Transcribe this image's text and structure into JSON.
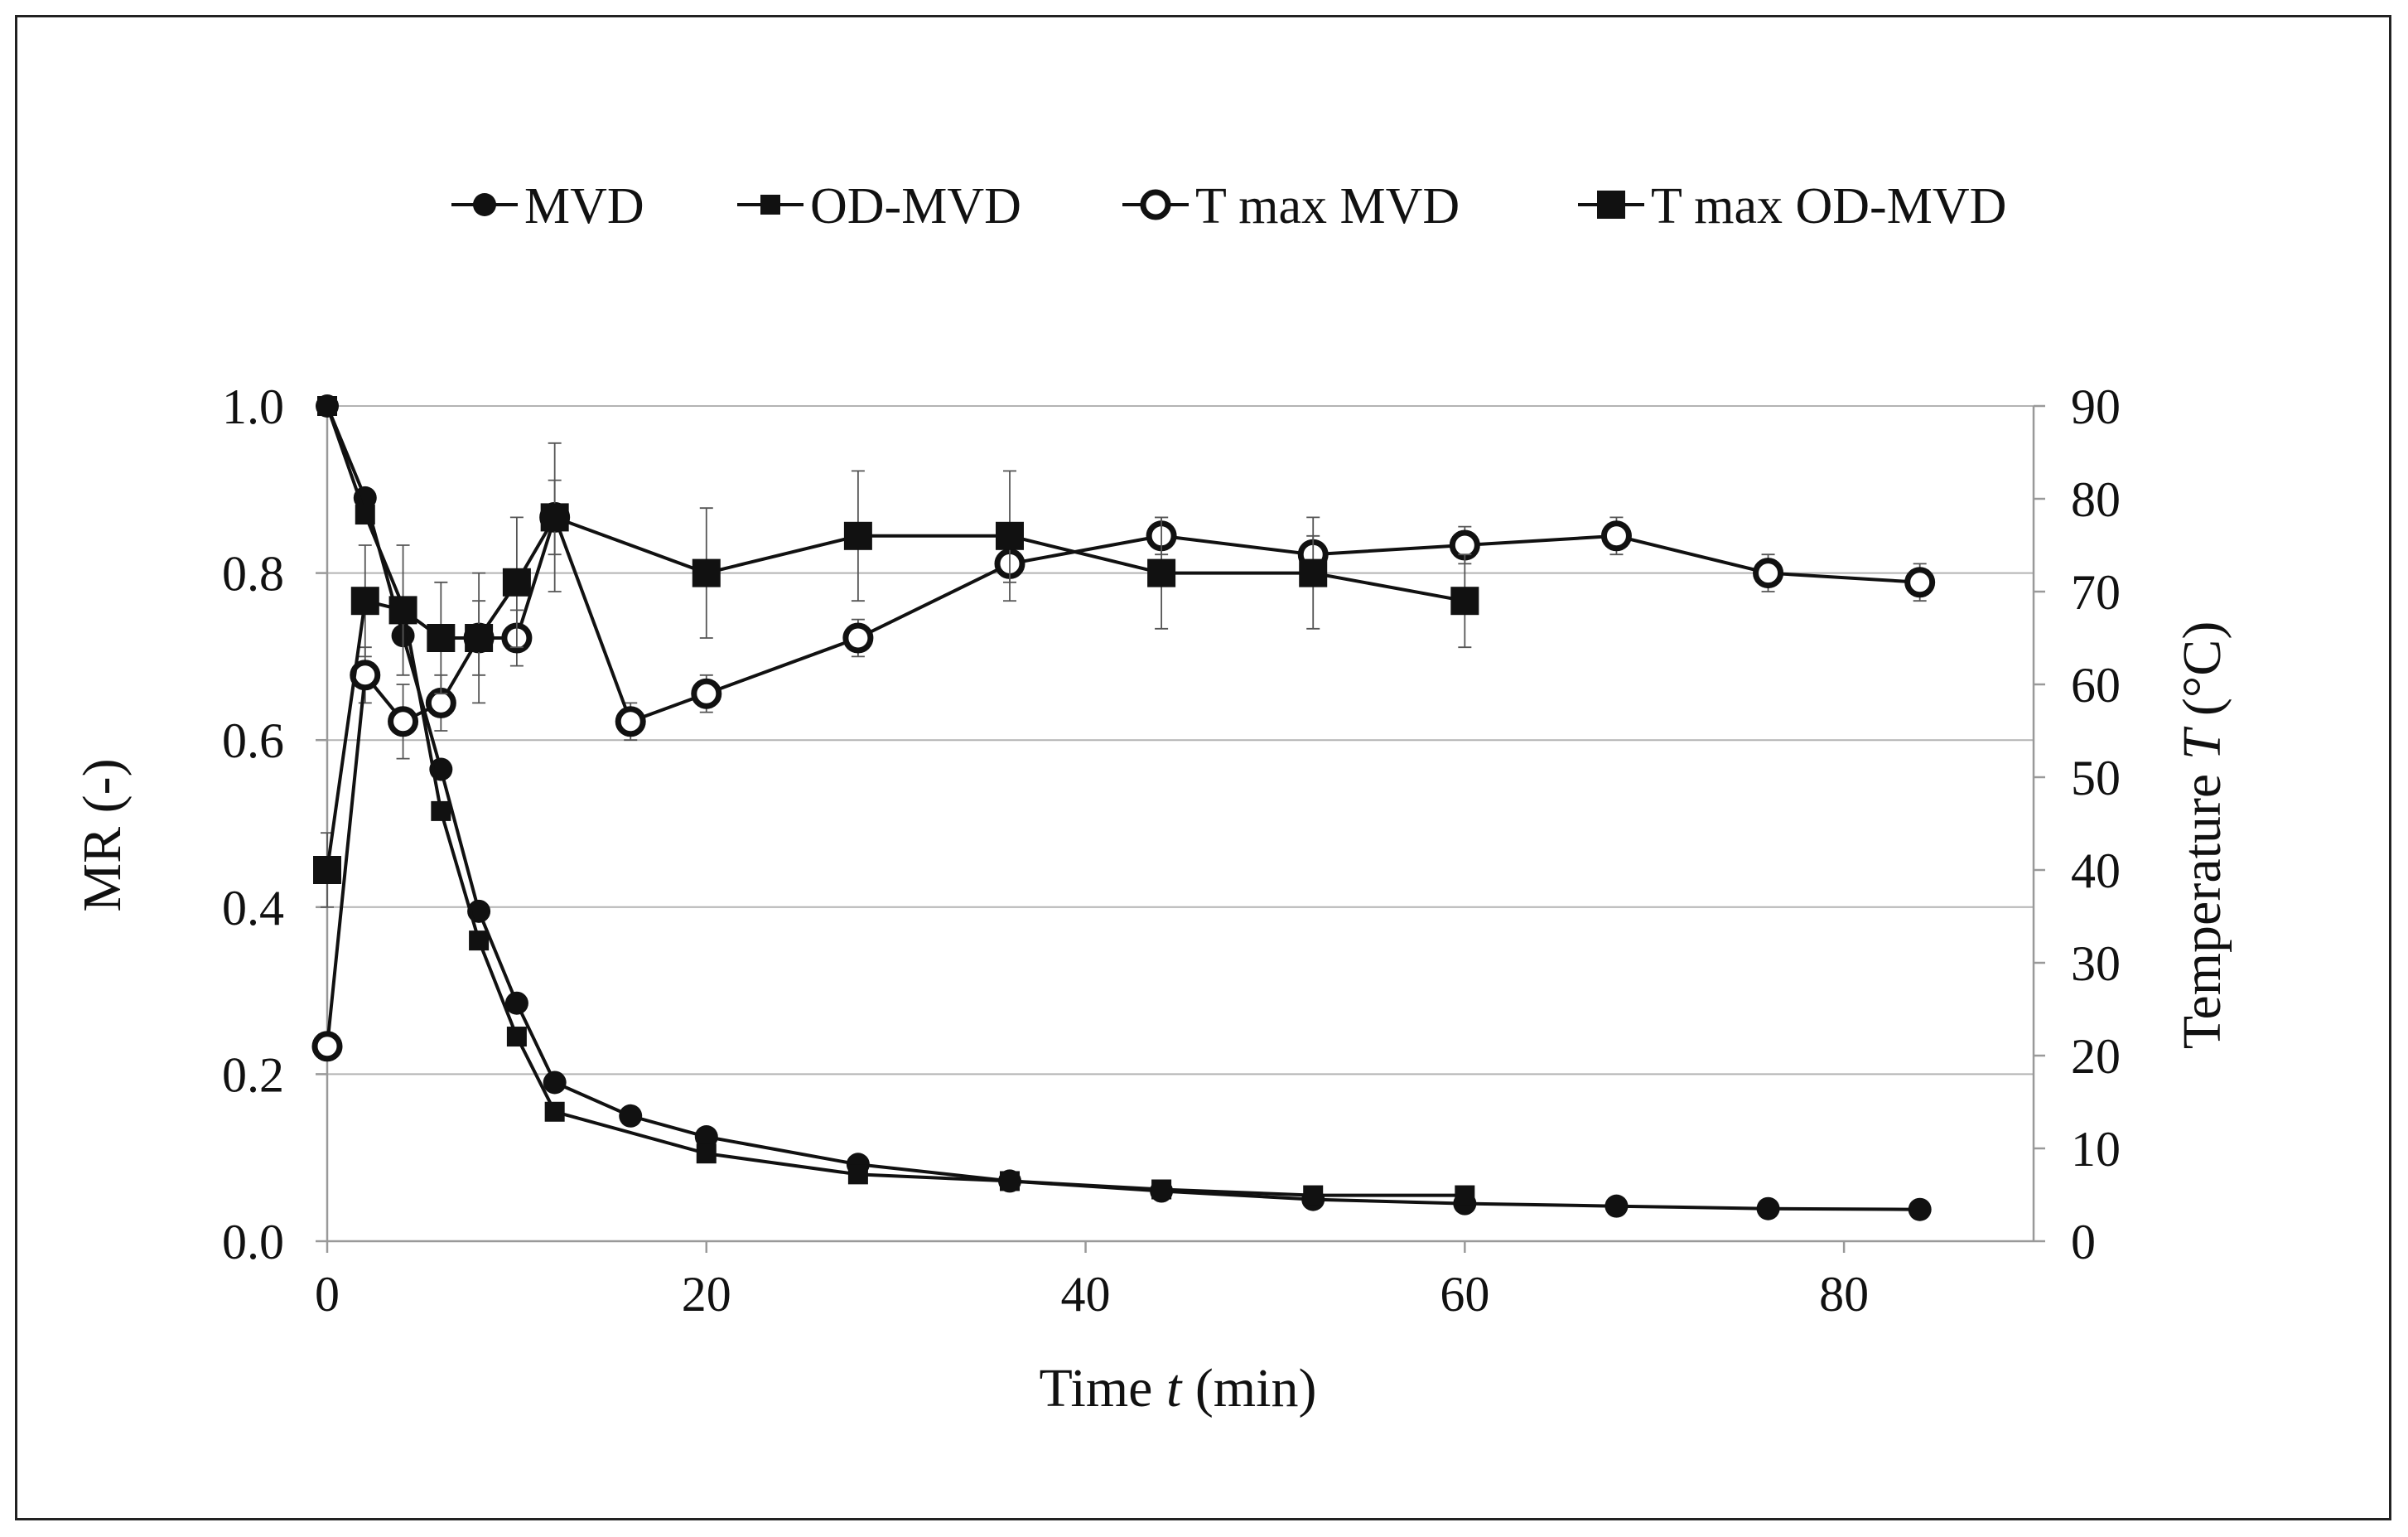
{
  "chart_data": {
    "type": "line",
    "title": "",
    "xlabel": "Time t (min)",
    "xlabel_parts": [
      "Time ",
      "t",
      " (min)"
    ],
    "ylabel": "MR (-)",
    "y2label": "Temperature T (°C)",
    "y2label_parts": [
      "Temperature ",
      "T",
      " (°C)"
    ],
    "xlim": [
      0,
      90
    ],
    "ylim": [
      0,
      1.0
    ],
    "y2lim": [
      0,
      90
    ],
    "x_ticks": [
      0,
      20,
      40,
      60,
      80
    ],
    "x_tick_labels": [
      "0",
      "20",
      "40",
      "60",
      "80"
    ],
    "y_ticks": [
      0,
      0.2,
      0.4,
      0.6,
      0.8,
      1.0
    ],
    "y_tick_labels": [
      "0.0",
      "0.2",
      "0.4",
      "0.6",
      "0.8",
      "1.0"
    ],
    "y2_ticks": [
      0,
      10,
      20,
      30,
      40,
      50,
      60,
      70,
      80,
      90
    ],
    "y2_tick_labels": [
      "0",
      "10",
      "20",
      "30",
      "40",
      "50",
      "60",
      "70",
      "80",
      "90"
    ],
    "grid": "horizontal",
    "legend_position": "top",
    "series": [
      {
        "name": "MVD",
        "axis": "left",
        "marker": "filled-circle",
        "x": [
          0,
          2,
          4,
          6,
          8,
          10,
          12,
          16,
          20,
          28,
          36,
          44,
          52,
          60,
          68,
          76,
          84
        ],
        "values": [
          1.0,
          0.89,
          0.725,
          0.565,
          0.395,
          0.285,
          0.19,
          0.15,
          0.125,
          0.092,
          0.072,
          0.06,
          0.05,
          0.045,
          0.042,
          0.039,
          0.038
        ]
      },
      {
        "name": "OD-MVD",
        "axis": "left",
        "marker": "small-filled-square",
        "x": [
          0,
          2,
          4,
          6,
          8,
          10,
          12,
          20,
          28,
          36,
          44,
          52,
          60
        ],
        "values": [
          1.0,
          0.87,
          0.76,
          0.515,
          0.36,
          0.245,
          0.155,
          0.105,
          0.08,
          0.072,
          0.062,
          0.055,
          0.055
        ]
      },
      {
        "name": "T max MVD",
        "axis": "right",
        "marker": "open-circle",
        "x": [
          0,
          2,
          4,
          6,
          8,
          10,
          12,
          16,
          20,
          28,
          36,
          44,
          52,
          60,
          68,
          76,
          84
        ],
        "values": [
          21,
          61,
          56,
          58,
          65,
          65,
          78,
          56,
          59,
          65,
          73,
          76,
          74,
          75,
          76,
          72,
          71
        ],
        "errors": [
          0,
          3,
          4,
          3,
          4,
          3,
          4,
          2,
          2,
          2,
          2,
          2,
          2,
          2,
          2,
          2,
          2
        ]
      },
      {
        "name": "T max OD-MVD",
        "axis": "right",
        "marker": "filled-square",
        "x": [
          0,
          2,
          4,
          6,
          8,
          10,
          12,
          20,
          28,
          36,
          44,
          52,
          60
        ],
        "values": [
          40,
          69,
          68,
          65,
          65,
          71,
          78,
          72,
          76,
          76,
          72,
          72,
          69
        ],
        "errors": [
          4,
          6,
          7,
          6,
          7,
          7,
          8,
          7,
          7,
          7,
          6,
          6,
          5
        ]
      }
    ]
  }
}
